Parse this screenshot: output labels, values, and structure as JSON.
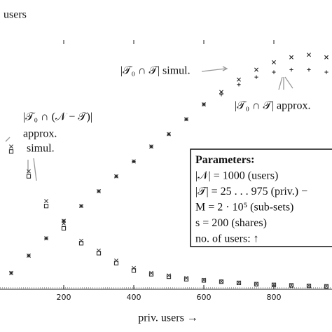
{
  "chart_data": {
    "type": "scatter",
    "ylabel": "users",
    "xlabel": "priv. users →",
    "x": [
      50,
      100,
      150,
      200,
      250,
      300,
      350,
      400,
      450,
      500,
      550,
      600,
      650,
      700,
      750,
      800,
      850,
      900,
      950
    ],
    "series": [
      {
        "name": "|𝒯₀ ∩ 𝒯| simul.",
        "marker": "x",
        "color": "#222222",
        "values": [
          6,
          13,
          20,
          27,
          33,
          39,
          45,
          51,
          57,
          62,
          68,
          74,
          79,
          84,
          88,
          91,
          93,
          94,
          93
        ]
      },
      {
        "name": "|𝒯₀ ∩ 𝒯| approx.",
        "marker": "+",
        "color": "#222222",
        "values": [
          6,
          13,
          20,
          27,
          33,
          39,
          45,
          51,
          57,
          62,
          68,
          74,
          78,
          82,
          85,
          87,
          88,
          88,
          87
        ]
      },
      {
        "name": "simul.",
        "marker": "square",
        "color": "#222222",
        "values": [
          55,
          45,
          33,
          24,
          18,
          14,
          10,
          7,
          5.5,
          4.5,
          3.5,
          3,
          2.5,
          2,
          1.5,
          1.2,
          1,
          0.8,
          0.6
        ]
      },
      {
        "name": "approx.",
        "marker": "x",
        "color": "#444444",
        "values": [
          57,
          47,
          35,
          26,
          19,
          15,
          11,
          8,
          6,
          5,
          4,
          3.2,
          2.6,
          2.1,
          1.6,
          1.3,
          1.1,
          0.9,
          0.7
        ]
      }
    ],
    "xlim": [
      18,
      966
    ],
    "ylim": [
      0,
      100
    ],
    "xticks": [
      200,
      400,
      600,
      800
    ],
    "annotations": [
      "|𝒯₀ ∩ (𝒩 − 𝒯)|"
    ],
    "parameters": {
      "title": "Parameters",
      "lines": [
        "|𝒩| = 1000 (users)",
        "|𝒯| = 25 . . . 975 (priv.) −",
        "M = 2 · 10⁵ (sub-sets)",
        "s = 200 (shares)",
        "no. of users: ↑"
      ]
    }
  }
}
